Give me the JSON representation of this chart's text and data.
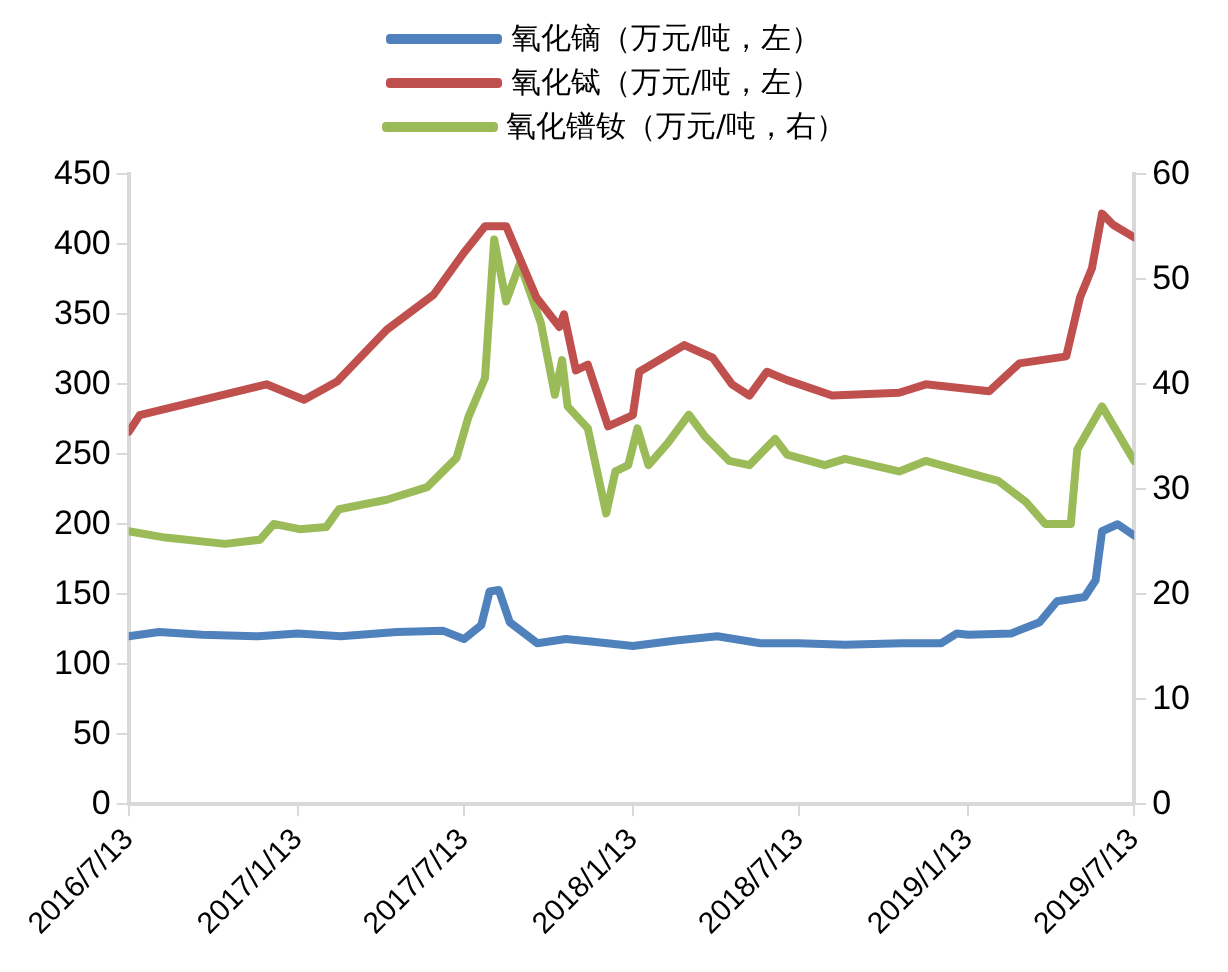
{
  "chart_data": {
    "type": "line",
    "legend": "top",
    "grid": false,
    "marker": "none",
    "line_style": "solid",
    "xlim": [
      "2016-07-13",
      "2019-07-13"
    ],
    "xticks": [
      {
        "value": "2016-07-13",
        "label": "2016/7/13"
      },
      {
        "value": "2017-01-13",
        "label": "2017/1/13"
      },
      {
        "value": "2017-07-13",
        "label": "2017/7/13"
      },
      {
        "value": "2018-01-13",
        "label": "2018/1/13"
      },
      {
        "value": "2018-07-13",
        "label": "2018/7/13"
      },
      {
        "value": "2019-01-13",
        "label": "2019/1/13"
      },
      {
        "value": "2019-07-13",
        "label": "2019/7/13"
      }
    ],
    "ylim": [
      0,
      450
    ],
    "yticks": [
      0,
      50,
      100,
      150,
      200,
      250,
      300,
      350,
      400,
      450
    ],
    "y2lim": [
      0,
      60
    ],
    "y2ticks": [
      0,
      10,
      20,
      30,
      40,
      50,
      60
    ],
    "series": [
      {
        "name": "氧化镝（万元/吨，左）",
        "color": "#4f81bd",
        "x": [
          "2016-07-13",
          "2016-08-15",
          "2016-10-01",
          "2016-12-01",
          "2017-01-13",
          "2017-03-01",
          "2017-05-01",
          "2017-06-20",
          "2017-07-13",
          "2017-08-01",
          "2017-08-10",
          "2017-08-20",
          "2017-09-01",
          "2017-10-01",
          "2017-11-01",
          "2017-12-01",
          "2018-01-13",
          "2018-03-01",
          "2018-04-15",
          "2018-06-01",
          "2018-07-13",
          "2018-09-01",
          "2018-11-01",
          "2018-12-15",
          "2019-01-01",
          "2019-01-13",
          "2019-03-01",
          "2019-04-01",
          "2019-04-20",
          "2019-05-20",
          "2019-06-01",
          "2019-06-08",
          "2019-06-25",
          "2019-07-13"
        ],
        "values": [
          120,
          123,
          121,
          120,
          122,
          120,
          123,
          124,
          118,
          128,
          152,
          153,
          130,
          115,
          118,
          116,
          113,
          117,
          120,
          115,
          115,
          114,
          115,
          115,
          122,
          121,
          122,
          130,
          145,
          148,
          160,
          195,
          200,
          192
        ]
      },
      {
        "name": "氧化铽（万元/吨，左）",
        "color": "#c0504d",
        "x": [
          "2016-07-13",
          "2016-07-25",
          "2016-12-10",
          "2017-01-20",
          "2017-02-25",
          "2017-04-20",
          "2017-06-10",
          "2017-07-13",
          "2017-08-05",
          "2017-08-28",
          "2017-09-30",
          "2017-10-25",
          "2017-10-30",
          "2017-11-12",
          "2017-11-25",
          "2017-12-17",
          "2018-01-13",
          "2018-01-20",
          "2018-03-10",
          "2018-04-10",
          "2018-05-01",
          "2018-05-20",
          "2018-06-08",
          "2018-06-30",
          "2018-08-18",
          "2018-10-30",
          "2018-11-28",
          "2019-02-05",
          "2019-03-10",
          "2019-04-30",
          "2019-05-15",
          "2019-05-28",
          "2019-06-08",
          "2019-06-20",
          "2019-07-13"
        ],
        "values": [
          266,
          278,
          300,
          289,
          302,
          339,
          364,
          394,
          413,
          413,
          362,
          341,
          350,
          310,
          314,
          270,
          278,
          309,
          328,
          319,
          300,
          292,
          309,
          303,
          292,
          294,
          300,
          295,
          315,
          320,
          362,
          383,
          422,
          414,
          405
        ]
      },
      {
        "name": "氧化镨钕（万元/吨，右）",
        "color": "#9bbb59",
        "axis": "y2",
        "x": [
          "2016-07-13",
          "2016-08-22",
          "2016-10-26",
          "2016-12-03",
          "2016-12-18",
          "2017-01-15",
          "2017-02-13",
          "2017-02-27",
          "2017-04-20",
          "2017-06-03",
          "2017-07-05",
          "2017-07-18",
          "2017-08-05",
          "2017-08-15",
          "2017-08-28",
          "2017-09-12",
          "2017-10-05",
          "2017-10-20",
          "2017-10-28",
          "2017-11-03",
          "2017-11-25",
          "2017-12-15",
          "2017-12-25",
          "2018-01-08",
          "2018-01-18",
          "2018-01-30",
          "2018-02-20",
          "2018-03-15",
          "2018-04-02",
          "2018-04-28",
          "2018-05-20",
          "2018-06-17",
          "2018-06-30",
          "2018-08-10",
          "2018-09-01",
          "2018-10-30",
          "2018-11-28",
          "2019-01-25",
          "2019-02-15",
          "2019-03-17",
          "2019-04-07",
          "2019-05-05",
          "2019-05-12",
          "2019-06-08",
          "2019-07-13"
        ],
        "values": [
          26.0,
          25.4,
          24.8,
          25.2,
          26.7,
          26.2,
          26.4,
          28.1,
          29.0,
          30.2,
          33.0,
          36.9,
          40.6,
          53.8,
          47.9,
          51.5,
          45.8,
          39.0,
          42.3,
          37.9,
          35.8,
          27.7,
          31.7,
          32.3,
          35.8,
          32.3,
          34.4,
          37.1,
          35.0,
          32.7,
          32.3,
          34.8,
          33.3,
          32.3,
          32.9,
          31.7,
          32.7,
          31.3,
          30.8,
          28.8,
          26.7,
          26.7,
          33.8,
          37.9,
          32.7
        ]
      }
    ]
  }
}
